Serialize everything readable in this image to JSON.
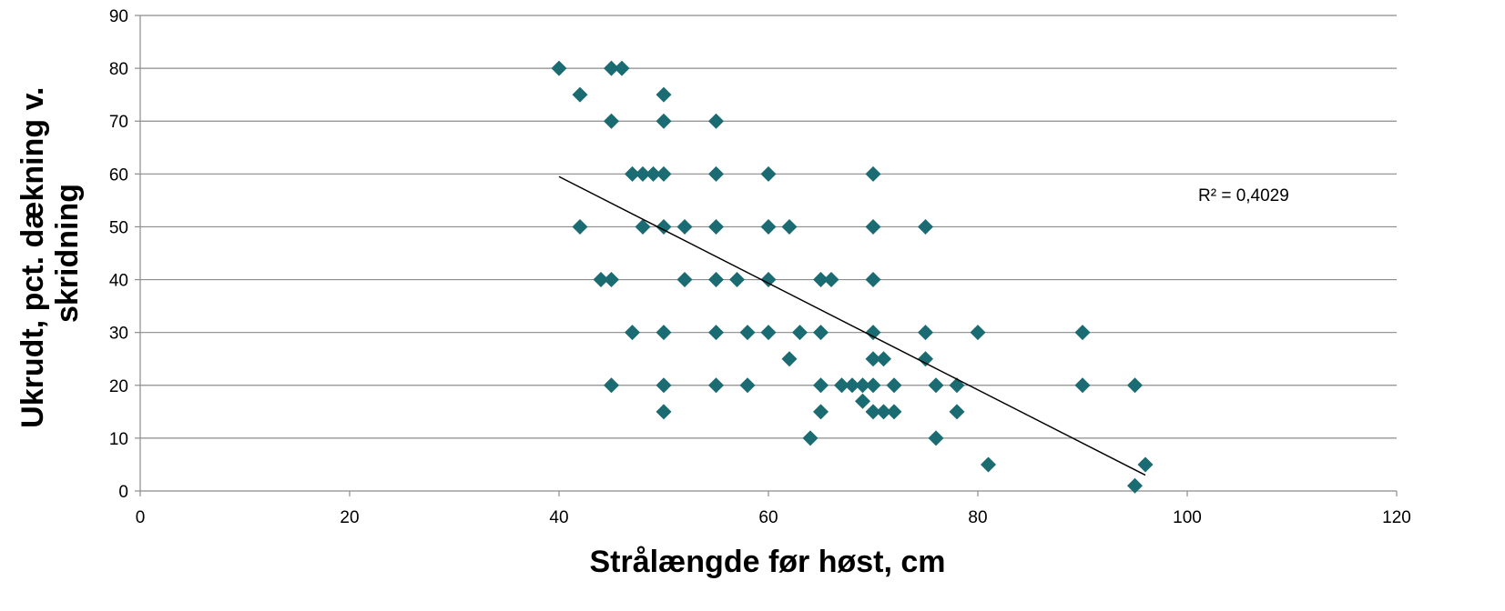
{
  "chart_data": {
    "type": "scatter",
    "xlabel": "Strålængde før høst, cm",
    "ylabel_lines": [
      "Ukrudt, pct. dækning v.",
      "skridning"
    ],
    "xlim": [
      0,
      120
    ],
    "ylim": [
      0,
      90
    ],
    "x_ticks": [
      0,
      20,
      40,
      60,
      80,
      100,
      120
    ],
    "y_ticks": [
      0,
      10,
      20,
      30,
      40,
      50,
      60,
      70,
      80,
      90
    ],
    "grid": "horizontal",
    "marker_color": "#1a6b72",
    "trendline": {
      "type": "linear",
      "x": [
        40,
        96
      ],
      "y": [
        59.5,
        3
      ],
      "r2_label": "R² = 0,4029"
    },
    "points": [
      [
        40,
        80
      ],
      [
        45,
        80
      ],
      [
        46,
        80
      ],
      [
        42,
        75
      ],
      [
        50,
        75
      ],
      [
        45,
        70
      ],
      [
        50,
        70
      ],
      [
        55,
        70
      ],
      [
        47,
        60
      ],
      [
        48,
        60
      ],
      [
        49,
        60
      ],
      [
        50,
        60
      ],
      [
        55,
        60
      ],
      [
        60,
        60
      ],
      [
        70,
        60
      ],
      [
        42,
        50
      ],
      [
        48,
        50
      ],
      [
        50,
        50
      ],
      [
        52,
        50
      ],
      [
        55,
        50
      ],
      [
        60,
        50
      ],
      [
        62,
        50
      ],
      [
        70,
        50
      ],
      [
        75,
        50
      ],
      [
        44,
        40
      ],
      [
        45,
        40
      ],
      [
        52,
        40
      ],
      [
        55,
        40
      ],
      [
        57,
        40
      ],
      [
        60,
        40
      ],
      [
        65,
        40
      ],
      [
        66,
        40
      ],
      [
        70,
        40
      ],
      [
        47,
        30
      ],
      [
        50,
        30
      ],
      [
        55,
        30
      ],
      [
        58,
        30
      ],
      [
        60,
        30
      ],
      [
        63,
        30
      ],
      [
        65,
        30
      ],
      [
        70,
        30
      ],
      [
        75,
        30
      ],
      [
        80,
        30
      ],
      [
        90,
        30
      ],
      [
        62,
        25
      ],
      [
        70,
        25
      ],
      [
        71,
        25
      ],
      [
        75,
        25
      ],
      [
        45,
        20
      ],
      [
        50,
        20
      ],
      [
        55,
        20
      ],
      [
        58,
        20
      ],
      [
        65,
        20
      ],
      [
        67,
        20
      ],
      [
        68,
        20
      ],
      [
        69,
        20
      ],
      [
        70,
        20
      ],
      [
        72,
        20
      ],
      [
        76,
        20
      ],
      [
        78,
        20
      ],
      [
        90,
        20
      ],
      [
        95,
        20
      ],
      [
        69,
        17
      ],
      [
        50,
        15
      ],
      [
        65,
        15
      ],
      [
        70,
        15
      ],
      [
        71,
        15
      ],
      [
        72,
        15
      ],
      [
        78,
        15
      ],
      [
        64,
        10
      ],
      [
        76,
        10
      ],
      [
        81,
        5
      ],
      [
        96,
        5
      ],
      [
        95,
        1
      ]
    ]
  }
}
